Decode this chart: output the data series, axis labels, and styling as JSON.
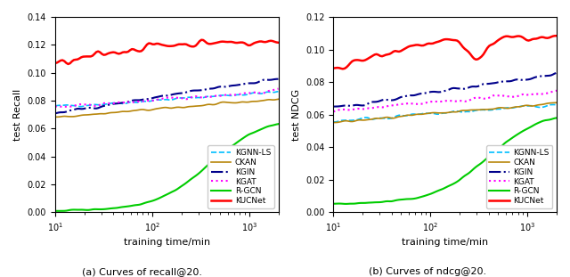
{
  "left_title": "(a) Curves of recall@20.",
  "right_title": "(b) Curves of ndcg@20.",
  "xlabel": "training time/min",
  "left_ylabel": "test Recall",
  "right_ylabel": "test NDCG",
  "x_min": 10,
  "x_max": 2000,
  "left_ylim": [
    0,
    0.14
  ],
  "right_ylim": [
    0,
    0.12
  ],
  "left_yticks": [
    0,
    0.02,
    0.04,
    0.06,
    0.08,
    0.1,
    0.12,
    0.14
  ],
  "right_yticks": [
    0,
    0.02,
    0.04,
    0.06,
    0.08,
    0.1,
    0.12
  ],
  "legend_labels": [
    "KGNN-LS",
    "CKAN",
    "KGIN",
    "KGAT",
    "R-GCN",
    "KUCNet"
  ],
  "colors": {
    "KGNN-LS": "#00BFFF",
    "CKAN": "#B8860B",
    "KGIN": "#00008B",
    "KGAT": "#FF00FF",
    "R-GCN": "#00CC00",
    "KUCNet": "#FF0000"
  },
  "linestyles": {
    "KGNN-LS": "--",
    "CKAN": "-",
    "KGIN": "-.",
    "KGAT": ":",
    "R-GCN": "-",
    "KUCNet": "-"
  },
  "linewidths": {
    "KGNN-LS": 1.2,
    "CKAN": 1.2,
    "KGIN": 1.5,
    "KGAT": 1.5,
    "R-GCN": 1.5,
    "KUCNet": 1.8
  }
}
